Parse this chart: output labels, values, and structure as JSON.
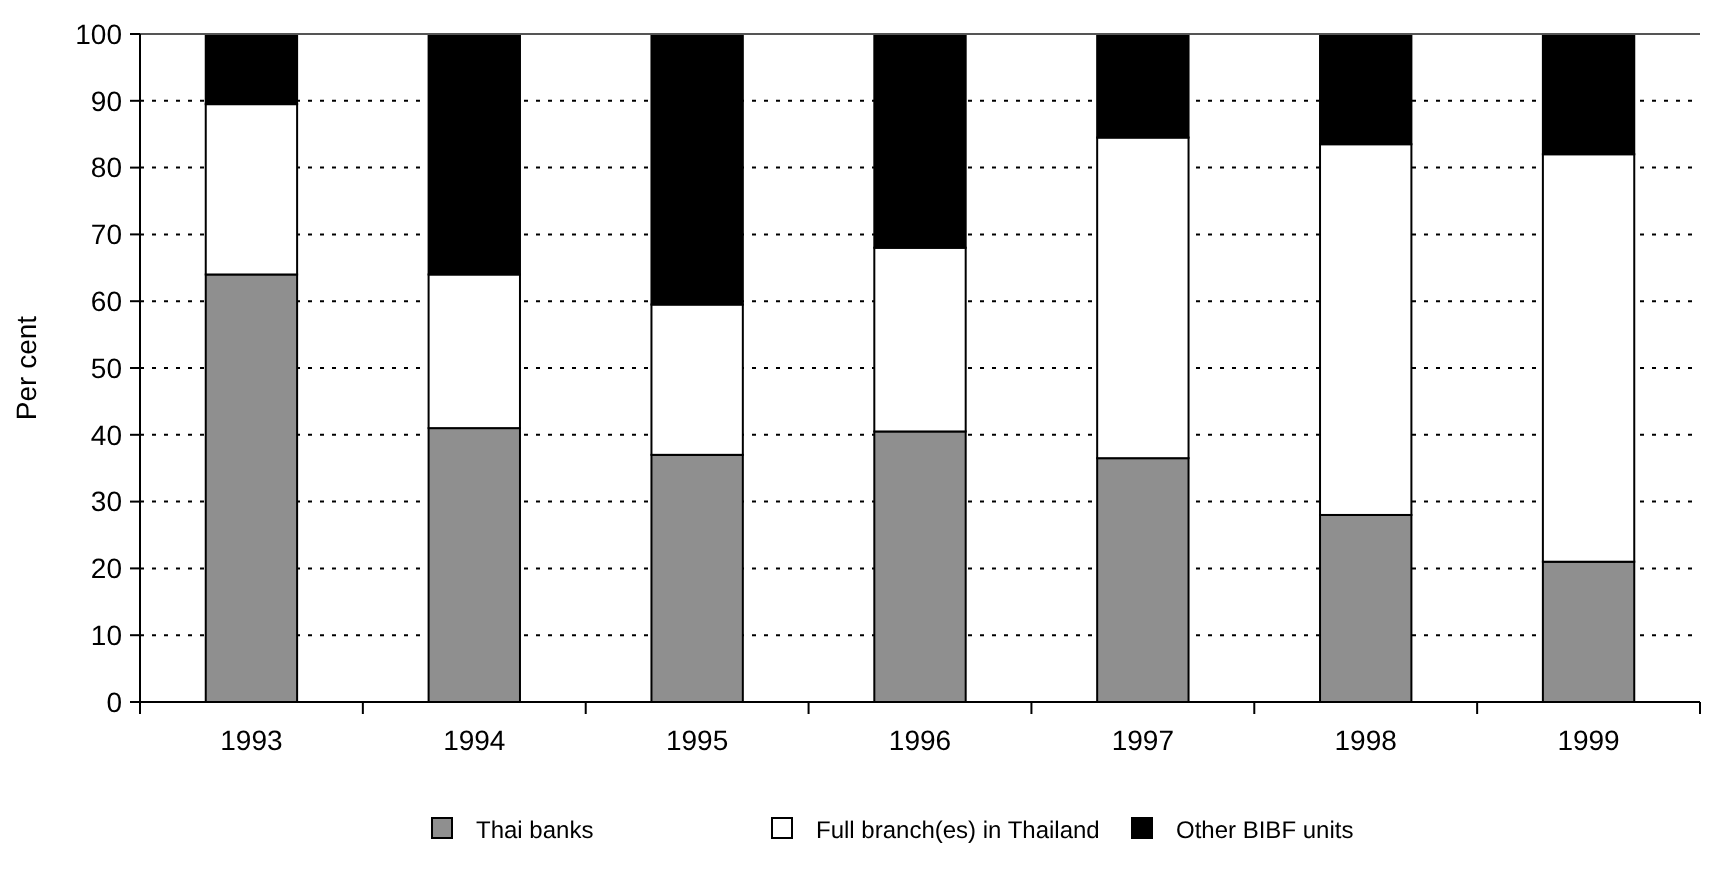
{
  "chart_data": {
    "type": "bar",
    "stacked": true,
    "ylabel": "Per cent",
    "categories": [
      "1993",
      "1994",
      "1995",
      "1996",
      "1997",
      "1998",
      "1999"
    ],
    "series": [
      {
        "name": "Thai banks",
        "color": "#8f8f8f",
        "values": [
          64,
          41,
          37,
          40.5,
          36.5,
          28,
          21
        ]
      },
      {
        "name": "Full branch(es) in Thailand",
        "color": "#ffffff",
        "values": [
          25.5,
          23,
          22.5,
          27.5,
          48,
          55.5,
          61
        ]
      },
      {
        "name": "Other BIBF units",
        "color": "#000000",
        "values": [
          10.5,
          36,
          40.5,
          32,
          15.5,
          16.5,
          18
        ]
      }
    ],
    "ylim": [
      0,
      100
    ],
    "yticks": [
      0,
      10,
      20,
      30,
      40,
      50,
      60,
      70,
      80,
      90,
      100
    ],
    "grid": "y",
    "legend": "bottom"
  }
}
